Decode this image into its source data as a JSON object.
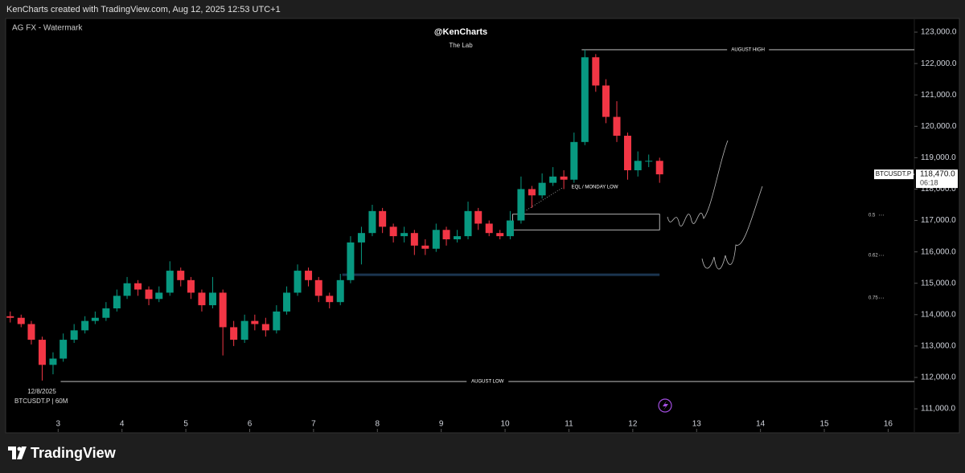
{
  "header": "KenCharts created with TradingView.com, Aug 12, 2025 12:53 UTC+1",
  "footer": {
    "brand": "TradingView"
  },
  "chart_data": {
    "type": "candlestick",
    "indicator_label": "AG FX - Watermark",
    "title": "@KenCharts",
    "subtitle": "The Lab",
    "symbol_label": "BTCUSDT.P | 60M",
    "date_label": "12/8/2025",
    "x": [
      2.25,
      2.42,
      2.58,
      2.75,
      2.92,
      3.08,
      3.25,
      3.42,
      3.58,
      3.75,
      3.92,
      4.08,
      4.25,
      4.42,
      4.58,
      4.75,
      4.92,
      5.08,
      5.25,
      5.42,
      5.58,
      5.75,
      5.92,
      6.08,
      6.25,
      6.42,
      6.58,
      6.75,
      6.92,
      7.08,
      7.25,
      7.42,
      7.58,
      7.75,
      7.92,
      8.08,
      8.25,
      8.42,
      8.58,
      8.75,
      8.92,
      9.08,
      9.25,
      9.42,
      9.58,
      9.75,
      9.92,
      10.08,
      10.25,
      10.42,
      10.58,
      10.75,
      10.92,
      11.08,
      11.25,
      11.42,
      11.58,
      11.75,
      11.92,
      12.08,
      12.25,
      12.42
    ],
    "open": [
      113950,
      113900,
      113700,
      113200,
      112400,
      112600,
      113200,
      113500,
      113800,
      113900,
      114200,
      114600,
      115000,
      114800,
      114500,
      114700,
      115400,
      115100,
      114700,
      114300,
      114700,
      113600,
      113200,
      113800,
      113700,
      113500,
      114100,
      114700,
      115400,
      115100,
      114600,
      114400,
      115100,
      116300,
      116600,
      117300,
      116800,
      116500,
      116600,
      116200,
      116100,
      116700,
      116400,
      116500,
      117300,
      116900,
      116600,
      116500,
      117000,
      118000,
      117800,
      118200,
      118400,
      118300,
      119500,
      122200,
      121300,
      120300,
      119700,
      118600,
      118900,
      118900
    ],
    "high": [
      114100,
      114000,
      113800,
      113300,
      112800,
      113400,
      113700,
      113950,
      114100,
      114400,
      114800,
      115200,
      115100,
      114900,
      114900,
      115700,
      115500,
      115200,
      114800,
      115200,
      114800,
      113800,
      114000,
      114000,
      113900,
      114300,
      114900,
      115600,
      115500,
      115200,
      114700,
      115300,
      116500,
      116800,
      117500,
      117400,
      116900,
      116800,
      116700,
      116400,
      116900,
      116800,
      116700,
      117600,
      117400,
      117000,
      116700,
      117300,
      118400,
      118100,
      118500,
      118700,
      118600,
      119800,
      122440,
      122300,
      121500,
      120800,
      119800,
      119200,
      119100,
      119000
    ],
    "low": [
      113750,
      113600,
      113050,
      111900,
      112100,
      112500,
      113100,
      113400,
      113700,
      113800,
      114100,
      114500,
      114600,
      114300,
      114400,
      114600,
      114900,
      114500,
      114100,
      114200,
      112700,
      113000,
      113100,
      113500,
      113300,
      113400,
      114000,
      114600,
      114900,
      114400,
      114200,
      114300,
      115000,
      115600,
      116500,
      116600,
      116300,
      116300,
      115900,
      115900,
      116000,
      116200,
      116300,
      116400,
      116700,
      116500,
      116400,
      116400,
      116900,
      117400,
      117700,
      118100,
      118000,
      118200,
      119400,
      121100,
      120100,
      119500,
      118300,
      118400,
      118700,
      118200
    ],
    "close": [
      113900,
      113700,
      113200,
      112400,
      112600,
      113200,
      113500,
      113800,
      113900,
      114200,
      114600,
      115000,
      114800,
      114500,
      114700,
      115400,
      115100,
      114700,
      114300,
      114700,
      113600,
      113200,
      113800,
      113700,
      113500,
      114100,
      114700,
      115400,
      115100,
      114600,
      114400,
      115100,
      116300,
      116600,
      117300,
      116800,
      116500,
      116600,
      116200,
      116100,
      116700,
      116400,
      116500,
      117300,
      116900,
      116600,
      116500,
      117000,
      118000,
      117800,
      118200,
      118400,
      118300,
      119500,
      122200,
      121300,
      120300,
      119700,
      118600,
      118900,
      118900,
      118470
    ],
    "up_color": "#089981",
    "down_color": "#f23645",
    "xlim": [
      2.19,
      16.41
    ],
    "xticks": [
      3,
      4,
      5,
      6,
      7,
      8,
      9,
      10,
      11,
      12,
      13,
      14,
      15,
      16
    ],
    "ylim": [
      110260,
      123410
    ],
    "yticks": [
      {
        "value": 111000,
        "label": "111,000.0"
      },
      {
        "value": 112000,
        "label": "112,000.0"
      },
      {
        "value": 113000,
        "label": "113,000.0"
      },
      {
        "value": 114000,
        "label": "114,000.0"
      },
      {
        "value": 115000,
        "label": "115,000.0"
      },
      {
        "value": 116000,
        "label": "116,000.0"
      },
      {
        "value": 117000,
        "label": "117,000.0"
      },
      {
        "value": 118000,
        "label": "118,000.0"
      },
      {
        "value": 119000,
        "label": "119,000.0"
      },
      {
        "value": 120000,
        "label": "120,000.0"
      },
      {
        "value": 121000,
        "label": "121,000.0"
      },
      {
        "value": 122000,
        "label": "122,000.0"
      },
      {
        "value": 123000,
        "label": "123,000.0"
      }
    ],
    "levels": [
      {
        "label": "AUGUST HIGH",
        "value": 122440,
        "from": 11.2
      },
      {
        "label": "AUGUST LOW",
        "value": 111870,
        "from": 3.04
      }
    ],
    "zone": {
      "top": 117200,
      "bottom": 116700,
      "from": 10.12,
      "to": 12.42
    },
    "blue_level": {
      "value": 115270,
      "from": 7.45,
      "to": 12.42
    },
    "eql_label": "EQL / MONDAY LOW",
    "fib_levels": [
      {
        "ratio": 0.5,
        "price": 117170
      },
      {
        "ratio": 0.62,
        "price": 115890
      },
      {
        "ratio": 0.75,
        "price": 114530
      }
    ],
    "last_price": {
      "symbol": "BTCUSDT.P",
      "value": 118470,
      "label": "118,470.0",
      "countdown": "06:18"
    }
  }
}
